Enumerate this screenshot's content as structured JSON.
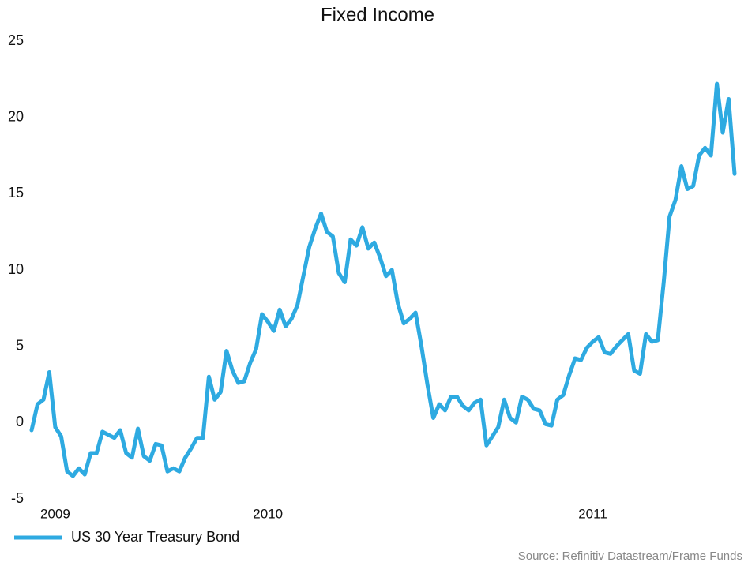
{
  "chart_data": {
    "type": "line",
    "title": "Fixed Income",
    "source": "Source: Refinitiv Datastream/Frame Funds",
    "categories": [
      null,
      null,
      null,
      null,
      "2009",
      null,
      null,
      null,
      null,
      null,
      null,
      null,
      null,
      null,
      null,
      null,
      null,
      null,
      null,
      null,
      null,
      null,
      null,
      null,
      null,
      null,
      null,
      null,
      null,
      null,
      null,
      null,
      null,
      null,
      null,
      null,
      null,
      null,
      null,
      null,
      "2010",
      null,
      null,
      null,
      null,
      null,
      null,
      null,
      null,
      null,
      null,
      null,
      null,
      null,
      null,
      null,
      null,
      null,
      null,
      null,
      null,
      null,
      null,
      null,
      null,
      null,
      null,
      null,
      null,
      null,
      null,
      null,
      null,
      null,
      null,
      null,
      null,
      null,
      null,
      null,
      null,
      null,
      null,
      null,
      null,
      null,
      null,
      null,
      null,
      null,
      null,
      null,
      null,
      null,
      null,
      "2011",
      null,
      null,
      null,
      null,
      null,
      null,
      null,
      null,
      null,
      null,
      null,
      null,
      null,
      null,
      null,
      null,
      null,
      null,
      null,
      null,
      null,
      null,
      null,
      null
    ],
    "series": [
      {
        "name": "US 30 Year Treasury Bond",
        "color": "#2eaae1",
        "values": [
          -0.5,
          1.2,
          1.5,
          3.3,
          -0.3,
          -0.9,
          -3.2,
          -3.5,
          -3.0,
          -3.4,
          -2.0,
          -2.0,
          -0.6,
          -0.8,
          -1.0,
          -0.5,
          -2.0,
          -2.3,
          -0.4,
          -2.2,
          -2.5,
          -1.4,
          -1.5,
          -3.2,
          -3.0,
          -3.2,
          -2.3,
          -1.7,
          -1.0,
          -1.0,
          3.0,
          1.5,
          2.0,
          4.7,
          3.4,
          2.6,
          2.7,
          3.9,
          4.8,
          7.1,
          6.6,
          6.0,
          7.4,
          6.3,
          6.8,
          7.7,
          9.6,
          11.5,
          12.7,
          13.7,
          12.5,
          12.2,
          9.8,
          9.2,
          12.0,
          11.6,
          12.8,
          11.4,
          11.8,
          10.8,
          9.6,
          10.0,
          7.8,
          6.5,
          6.8,
          7.2,
          5.0,
          2.5,
          0.3,
          1.2,
          0.8,
          1.7,
          1.7,
          1.1,
          0.8,
          1.3,
          1.5,
          -1.5,
          -0.9,
          -0.3,
          1.5,
          0.3,
          0.0,
          1.7,
          1.5,
          0.9,
          0.8,
          -0.1,
          -0.2,
          1.5,
          1.8,
          3.1,
          4.2,
          4.1,
          4.9,
          5.3,
          5.6,
          4.6,
          4.5,
          5.0,
          5.4,
          5.8,
          3.4,
          3.2,
          5.8,
          5.3,
          5.4,
          9.2,
          13.5,
          14.6,
          16.8,
          15.3,
          15.5,
          17.5,
          18.0,
          17.5,
          22.2,
          19.0,
          21.2,
          16.3
        ]
      }
    ],
    "ylim": [
      -5,
      25
    ],
    "yticks": [
      -5,
      0,
      5,
      10,
      15,
      20,
      25
    ]
  }
}
